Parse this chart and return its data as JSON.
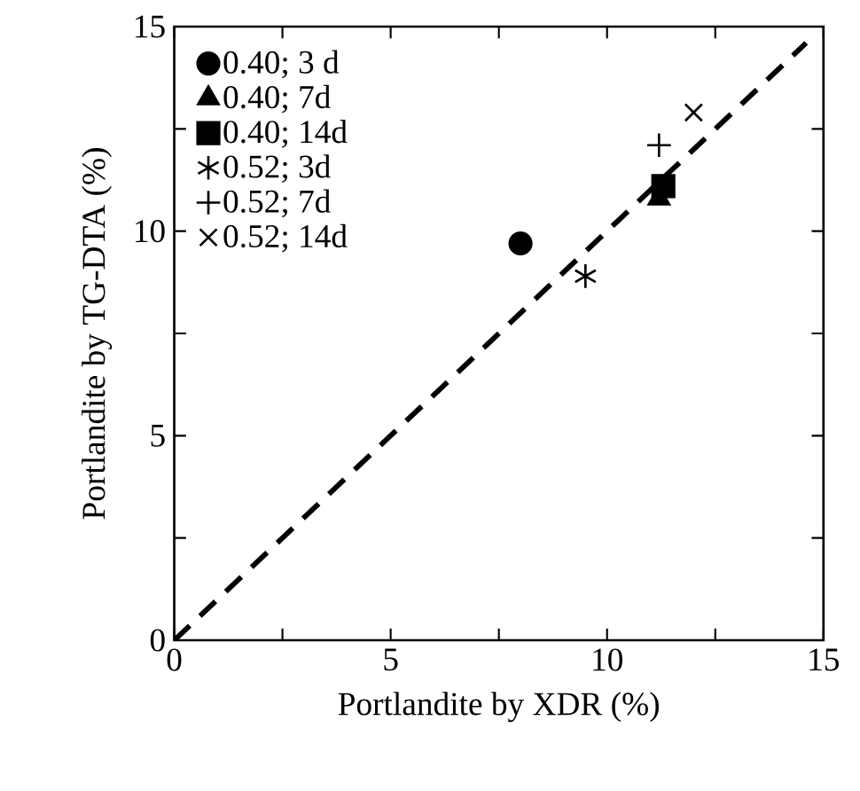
{
  "chart_data": {
    "type": "scatter",
    "xlabel": "Portlandite by XDR (%)",
    "ylabel": "Portlandite by TG-DTA (%)",
    "xlim": [
      0,
      15
    ],
    "ylim": [
      0,
      15
    ],
    "xticks": [
      0,
      {
        "value": 2.5,
        "label": null
      },
      5,
      {
        "value": 7.5,
        "label": null
      },
      10,
      {
        "value": 12.5,
        "label": null
      },
      15
    ],
    "yticks": [
      0,
      {
        "value": 2.5,
        "label": null
      },
      5,
      {
        "value": 7.5,
        "label": null
      },
      10,
      {
        "value": 12.5,
        "label": null
      },
      15
    ],
    "grid": false,
    "legend": "top left",
    "series": [
      {
        "name": "0.40; 3 d",
        "color": "#000000",
        "marker": "circle",
        "x": [
          8.0
        ],
        "values": [
          9.7
        ]
      },
      {
        "name": "0.40; 7d",
        "color": "#000000",
        "marker": "triangle",
        "x": [
          11.2
        ],
        "values": [
          10.8
        ]
      },
      {
        "name": "0.40; 14d",
        "color": "#000000",
        "marker": "square",
        "x": [
          11.3
        ],
        "values": [
          11.1
        ]
      },
      {
        "name": "0.52; 3d",
        "color": "#000000",
        "marker": "cross",
        "x": [
          9.5
        ],
        "values": [
          8.9
        ]
      },
      {
        "name": "0.52; 7d",
        "color": "#000000",
        "marker": "plus",
        "x": [
          11.2
        ],
        "values": [
          12.1
        ]
      },
      {
        "name": "0.52; 14d",
        "color": "#000000",
        "marker": "x",
        "x": [
          12.0
        ],
        "values": [
          12.9
        ]
      },
      {
        "type": "line",
        "color": "#000000",
        "line_style": "dashed",
        "marker": "none",
        "x": [
          0,
          14.6
        ],
        "values": [
          0,
          14.6
        ]
      }
    ]
  }
}
